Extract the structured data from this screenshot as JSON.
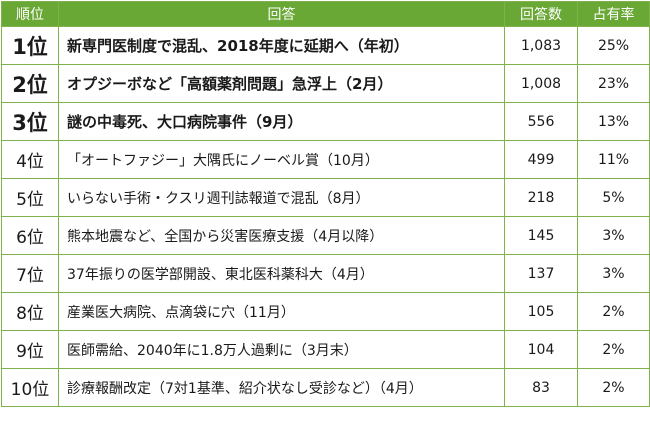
{
  "header": {
    "rank": "順位",
    "answer": "回答",
    "count": "回答数",
    "share": "占有率"
  },
  "rows": [
    {
      "rank": "1位",
      "answer": "新専門医制度で混乱、2018年度に延期へ（年初）",
      "count": "1,083",
      "share": "25%",
      "highlight": true
    },
    {
      "rank": "2位",
      "answer": "オプジーボなど「高額薬剤問題」急浮上（2月）",
      "count": "1,008",
      "share": "23%",
      "highlight": true
    },
    {
      "rank": "3位",
      "answer": "謎の中毒死、大口病院事件（9月）",
      "count": "556",
      "share": "13%",
      "highlight": true
    },
    {
      "rank": "4位",
      "answer": "「オートファジー」大隅氏にノーベル賞（10月）",
      "count": "499",
      "share": "11%",
      "highlight": false
    },
    {
      "rank": "5位",
      "answer": "いらない手術・クスリ週刊誌報道で混乱（8月）",
      "count": "218",
      "share": "5%",
      "highlight": false
    },
    {
      "rank": "6位",
      "answer": "熊本地震など、全国から災害医療支援（4月以降）",
      "count": "145",
      "share": "3%",
      "highlight": false
    },
    {
      "rank": "7位",
      "answer": "37年振りの医学部開設、東北医科薬科大（4月）",
      "count": "137",
      "share": "3%",
      "highlight": false
    },
    {
      "rank": "8位",
      "answer": "産業医大病院、点滴袋に穴（11月）",
      "count": "105",
      "share": "2%",
      "highlight": false
    },
    {
      "rank": "9位",
      "answer": "医師需給、2040年に1.8万人過剰に（3月末）",
      "count": "104",
      "share": "2%",
      "highlight": false
    },
    {
      "rank": "10位",
      "answer": "診療報酬改定（7対1基準、紹介状なし受診など）（4月）",
      "count": "83",
      "share": "2%",
      "highlight": false
    }
  ],
  "colors": {
    "header_bg": "#6aa835",
    "border": "#7fb24a"
  }
}
